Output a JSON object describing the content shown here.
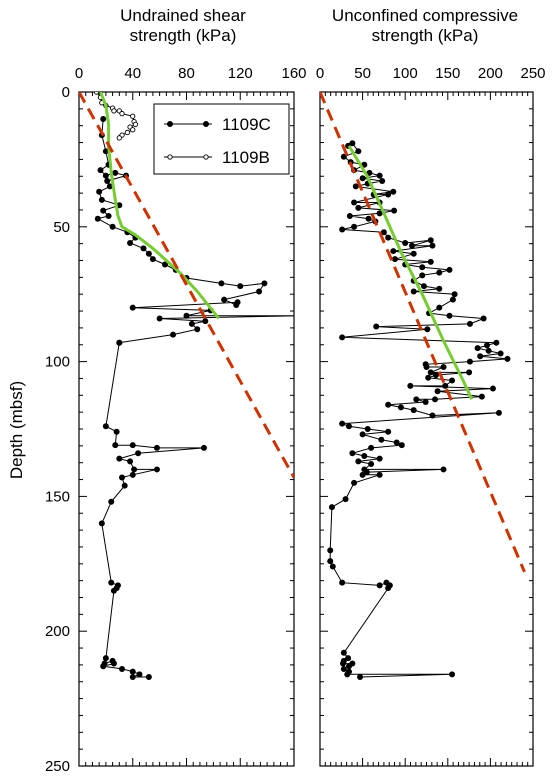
{
  "figure": {
    "ylabel": "Depth (mbsf)"
  },
  "chart_data": [
    {
      "type": "scatter",
      "title_line1": "Undrained shear",
      "title_line2": "strength (kPa)",
      "xlabel": "Undrained shear strength (kPa)",
      "ylabel": "Depth (mbsf)",
      "xlim": [
        0,
        160
      ],
      "ylim": [
        250,
        0
      ],
      "x_axis_position": "top",
      "x_ticks": [
        0,
        40,
        80,
        120,
        160
      ],
      "y_ticks": [
        0,
        50,
        100,
        150,
        200,
        250
      ],
      "legend_position": "top-right",
      "grid": false,
      "series": [
        {
          "name": "1109C",
          "marker": "filled-circle",
          "color": "#000000",
          "points": [
            [
              18,
              10
            ],
            [
              17,
              16
            ],
            [
              20,
              22
            ],
            [
              22,
              27
            ],
            [
              16,
              29
            ],
            [
              20,
              31
            ],
            [
              27,
              30
            ],
            [
              35,
              31
            ],
            [
              21,
              33
            ],
            [
              23,
              35
            ],
            [
              15,
              37
            ],
            [
              17,
              40
            ],
            [
              30,
              42
            ],
            [
              18,
              44
            ],
            [
              22,
              46
            ],
            [
              14,
              47
            ],
            [
              25,
              50
            ],
            [
              36,
              52
            ],
            [
              42,
              54
            ],
            [
              38,
              56
            ],
            [
              48,
              58
            ],
            [
              52,
              60
            ],
            [
              55,
              62
            ],
            [
              64,
              64
            ],
            [
              72,
              66
            ],
            [
              80,
              69
            ],
            [
              106,
              71
            ],
            [
              120,
              72
            ],
            [
              138,
              71
            ],
            [
              134,
              74
            ],
            [
              108,
              77
            ],
            [
              117,
              79
            ],
            [
              118,
              78
            ],
            [
              40,
              80
            ],
            [
              98,
              81
            ],
            [
              80,
              83
            ],
            [
              164,
              83
            ],
            [
              60,
              84
            ],
            [
              94,
              85
            ],
            [
              84,
              86
            ],
            [
              88,
              88
            ],
            [
              70,
              90
            ],
            [
              30,
              93
            ],
            [
              30,
              93
            ],
            [
              20,
              124
            ],
            [
              28,
              126
            ],
            [
              27,
              131
            ],
            [
              40,
              131
            ],
            [
              58,
              132
            ],
            [
              93,
              132
            ],
            [
              44,
              134
            ],
            [
              30,
              136
            ],
            [
              38,
              137
            ],
            [
              41,
              140
            ],
            [
              58,
              140
            ],
            [
              40,
              142
            ],
            [
              32,
              143
            ],
            [
              34,
              146
            ],
            [
              24,
              152
            ],
            [
              17,
              160
            ],
            [
              24,
              182
            ],
            [
              29,
              183
            ],
            [
              28,
              184
            ],
            [
              26,
              185
            ],
            [
              20,
              210
            ],
            [
              19,
              212
            ],
            [
              25,
              211
            ],
            [
              26,
              212
            ],
            [
              18,
              213
            ],
            [
              32,
              214
            ],
            [
              40,
              215
            ],
            [
              45,
              216
            ],
            [
              40,
              217
            ],
            [
              52,
              217
            ]
          ]
        },
        {
          "name": "1109B",
          "marker": "open-circle",
          "color": "#000000",
          "points": [
            [
              13,
              0
            ],
            [
              16,
              2
            ],
            [
              17,
              4
            ],
            [
              20,
              5
            ],
            [
              25,
              6
            ],
            [
              26,
              7
            ],
            [
              30,
              7
            ],
            [
              32,
              8
            ],
            [
              40,
              9
            ],
            [
              41,
              11
            ],
            [
              42,
              12
            ],
            [
              38,
              13
            ],
            [
              40,
              14
            ],
            [
              36,
              15
            ],
            [
              32,
              16
            ],
            [
              30,
              17
            ]
          ]
        },
        {
          "name": "",
          "style": "green-trend",
          "color": "#77cc33",
          "points": [
            [
              16,
              0
            ],
            [
              20,
              5
            ],
            [
              22,
              12
            ],
            [
              22,
              20
            ],
            [
              24,
              30
            ],
            [
              27,
              40
            ],
            [
              29,
              46
            ],
            [
              32,
              50
            ],
            [
              42,
              53
            ],
            [
              55,
              58
            ],
            [
              75,
              67
            ],
            [
              88,
              74
            ],
            [
              104,
              84
            ]
          ]
        },
        {
          "name": "",
          "style": "red-dashed",
          "color": "#cc3300",
          "points": [
            [
              0,
              0
            ],
            [
              160,
              143
            ]
          ]
        }
      ]
    },
    {
      "type": "scatter",
      "title_line1": "Unconfined compressive",
      "title_line2": "strength (kPa)",
      "xlabel": "Unconfined compressive strength (kPa)",
      "ylabel": "Depth (mbsf)",
      "xlim": [
        0,
        250
      ],
      "ylim": [
        250,
        0
      ],
      "x_axis_position": "top",
      "x_ticks": [
        0,
        50,
        100,
        150,
        200,
        250
      ],
      "y_ticks": [
        0,
        50,
        100,
        150,
        200,
        250
      ],
      "grid": false,
      "series": [
        {
          "name": "1109C",
          "marker": "filled-circle",
          "color": "#000000",
          "points": [
            [
              33,
              20
            ],
            [
              38,
              19
            ],
            [
              45,
              22
            ],
            [
              28,
              24
            ],
            [
              36,
              26
            ],
            [
              52,
              27
            ],
            [
              40,
              29
            ],
            [
              58,
              30
            ],
            [
              70,
              31
            ],
            [
              50,
              32
            ],
            [
              73,
              33
            ],
            [
              56,
              34
            ],
            [
              42,
              35
            ],
            [
              86,
              37
            ],
            [
              63,
              38
            ],
            [
              80,
              38
            ],
            [
              40,
              41
            ],
            [
              70,
              41
            ],
            [
              45,
              43
            ],
            [
              87,
              44
            ],
            [
              70,
              45
            ],
            [
              35,
              46
            ],
            [
              57,
              47
            ],
            [
              65,
              48
            ],
            [
              40,
              50
            ],
            [
              26,
              51
            ],
            [
              75,
              52
            ],
            [
              80,
              54
            ],
            [
              100,
              56
            ],
            [
              130,
              55
            ],
            [
              108,
              57
            ],
            [
              132,
              57
            ],
            [
              86,
              59
            ],
            [
              110,
              60
            ],
            [
              88,
              62
            ],
            [
              130,
              63
            ],
            [
              100,
              64
            ],
            [
              120,
              65
            ],
            [
              152,
              66
            ],
            [
              140,
              67
            ],
            [
              120,
              68
            ],
            [
              110,
              70
            ],
            [
              122,
              72
            ],
            [
              140,
              73
            ],
            [
              110,
              74
            ],
            [
              158,
              75
            ],
            [
              156,
              77
            ],
            [
              140,
              80
            ],
            [
              128,
              82
            ],
            [
              152,
              83
            ],
            [
              192,
              84
            ],
            [
              176,
              86
            ],
            [
              66,
              87
            ],
            [
              126,
              88
            ],
            [
              26,
              91
            ],
            [
              207,
              93
            ],
            [
              196,
              94
            ],
            [
              185,
              95
            ],
            [
              198,
              96
            ],
            [
              212,
              97
            ],
            [
              188,
              98
            ],
            [
              220,
              99
            ],
            [
              176,
              100
            ],
            [
              124,
              101
            ],
            [
              125,
              102
            ],
            [
              145,
              102
            ],
            [
              130,
              104
            ],
            [
              175,
              104
            ],
            [
              136,
              105
            ],
            [
              127,
              106
            ],
            [
              155,
              107
            ],
            [
              147,
              109
            ],
            [
              106,
              109
            ],
            [
              203,
              110
            ],
            [
              138,
              111
            ],
            [
              190,
              113
            ],
            [
              135,
              114
            ],
            [
              113,
              114
            ],
            [
              124,
              115
            ],
            [
              80,
              116
            ],
            [
              95,
              117
            ],
            [
              110,
              118
            ],
            [
              132,
              120
            ],
            [
              210,
              119
            ],
            [
              26,
              123
            ],
            [
              34,
              124
            ],
            [
              56,
              125
            ],
            [
              80,
              126
            ],
            [
              50,
              127
            ],
            [
              72,
              129
            ],
            [
              90,
              130
            ],
            [
              96,
              131
            ],
            [
              60,
              132
            ],
            [
              38,
              134
            ],
            [
              52,
              135
            ],
            [
              70,
              136
            ],
            [
              45,
              137
            ],
            [
              60,
              138
            ],
            [
              52,
              140
            ],
            [
              145,
              140
            ],
            [
              55,
              141
            ],
            [
              50,
              142
            ],
            [
              70,
              142
            ],
            [
              40,
              145
            ],
            [
              30,
              151
            ],
            [
              14,
              154
            ],
            [
              12,
              170
            ],
            [
              12,
              174
            ],
            [
              15,
              176
            ],
            [
              26,
              182
            ],
            [
              70,
              183
            ],
            [
              78,
              182
            ],
            [
              82,
              183
            ],
            [
              80,
              184
            ],
            [
              28,
              208
            ],
            [
              33,
              210
            ],
            [
              28,
              211
            ],
            [
              27,
              212
            ],
            [
              38,
              212
            ],
            [
              34,
              213
            ],
            [
              28,
              214
            ],
            [
              34,
              215
            ],
            [
              32,
              216
            ],
            [
              155,
              216
            ],
            [
              47,
              217
            ]
          ]
        },
        {
          "name": "",
          "style": "green-trend",
          "color": "#77cc33",
          "points": [
            [
              34,
              20
            ],
            [
              55,
              31
            ],
            [
              75,
              45
            ],
            [
              96,
              60
            ],
            [
              120,
              75
            ],
            [
              146,
              93
            ],
            [
              168,
              107
            ],
            [
              178,
              114
            ]
          ]
        },
        {
          "name": "",
          "style": "red-dashed",
          "color": "#cc3300",
          "points": [
            [
              0,
              0
            ],
            [
              240,
              178
            ]
          ]
        }
      ]
    }
  ]
}
